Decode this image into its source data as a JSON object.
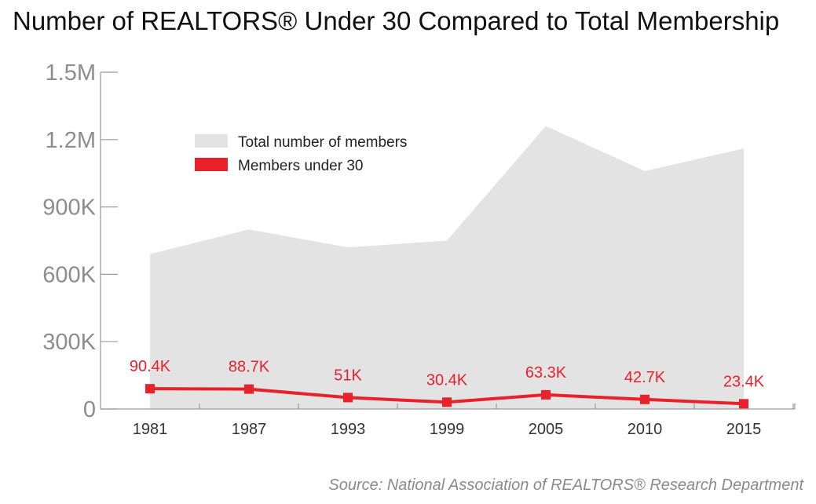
{
  "title": "Number of REALTORS® Under 30 Compared to Total Membership",
  "source": "Source: National Association of REALTORS® Research Department",
  "chart_data": {
    "type": "area",
    "title": "Number of REALTORS® Under 30 Compared to Total Membership",
    "categories": [
      "1981",
      "1987",
      "1993",
      "1999",
      "2005",
      "2010",
      "2015"
    ],
    "y_ticks": [
      {
        "value": 0,
        "label": "0"
      },
      {
        "value": 300000,
        "label": "300K"
      },
      {
        "value": 600000,
        "label": "600K"
      },
      {
        "value": 900000,
        "label": "900K"
      },
      {
        "value": 1200000,
        "label": "1.2M"
      },
      {
        "value": 1500000,
        "label": "1.5M"
      }
    ],
    "ylim": [
      0,
      1500000
    ],
    "grid": false,
    "legend_position": "top-left",
    "series": [
      {
        "name": "Total number of members",
        "type": "area",
        "color": "#e3e3e3",
        "values": [
          690000,
          800000,
          720000,
          750000,
          1260000,
          1060000,
          1160000
        ]
      },
      {
        "name": "Members under 30",
        "type": "line",
        "color": "#e8212b",
        "values": [
          90400,
          88700,
          51000,
          30400,
          63300,
          42700,
          23400
        ],
        "data_labels": [
          "90.4K",
          "88.7K",
          "51K",
          "30.4K",
          "63.3K",
          "42.7K",
          "23.4K"
        ]
      }
    ]
  }
}
